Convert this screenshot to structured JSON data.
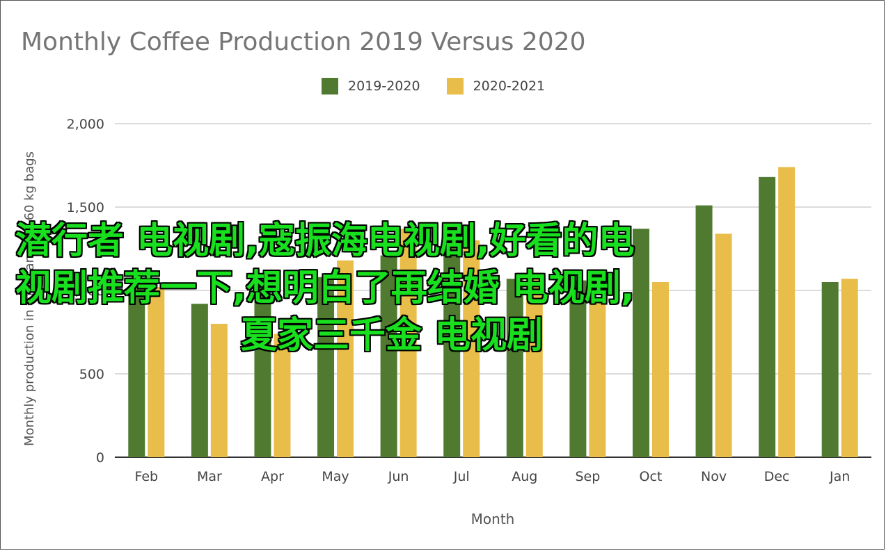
{
  "chart_data": {
    "type": "bar",
    "title": "Monthly Coffee Production 2019 Versus 2020",
    "xlabel": "Month",
    "ylabel": "Monthly production in thousands of 60 kg bags",
    "ylim": [
      0,
      2000
    ],
    "yticks": [
      "0",
      "500",
      "1,000",
      "1,500",
      "2,000"
    ],
    "grid": true,
    "legend_position": "top",
    "categories": [
      "Feb",
      "Mar",
      "Apr",
      "May",
      "Jun",
      "Jul",
      "Aug",
      "Sep",
      "Oct",
      "Nov",
      "Dec",
      "Jan"
    ],
    "series": [
      {
        "name": "2019-2020",
        "color": "#4f7a30",
        "values": [
          1010,
          920,
          1040,
          1080,
          1210,
          1320,
          1070,
          1060,
          1370,
          1510,
          1680,
          1050
        ]
      },
      {
        "name": "2020-2021",
        "color": "#e9bd4a",
        "values": [
          1020,
          800,
          740,
          1180,
          1370,
          1300,
          1100,
          960,
          1050,
          1340,
          1740,
          1070
        ]
      }
    ]
  },
  "overlay": {
    "color": "#19e01f",
    "lines": [
      "潜行者 电视剧,寇振海电视剧,好看的电",
      "视剧推荐一下,想明白了再结婚 电视剧,",
      "夏家三千金 电视剧"
    ]
  }
}
